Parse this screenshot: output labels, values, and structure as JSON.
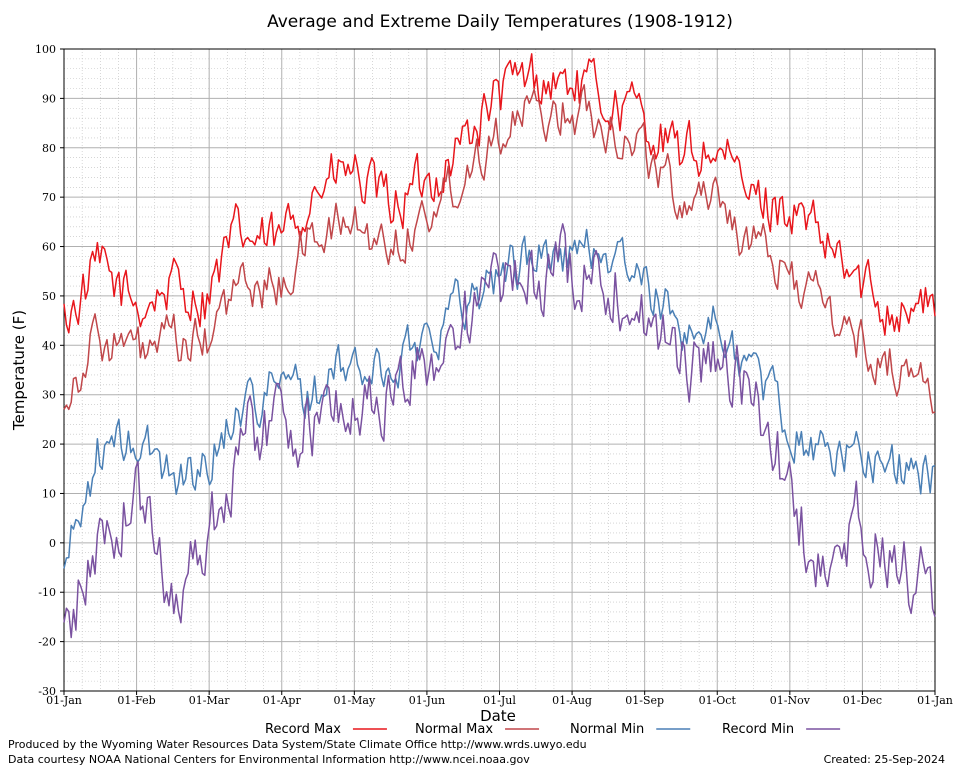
{
  "chart_data": {
    "type": "line",
    "title": "Average and Extreme Daily Temperatures (1908-1912)",
    "xlabel": "Date",
    "ylabel": "Temperature (F)",
    "ylim": [
      -30,
      100
    ],
    "yticks": [
      -30,
      -20,
      -10,
      0,
      10,
      20,
      30,
      40,
      50,
      60,
      70,
      80,
      90,
      100
    ],
    "xticks": [
      "01-Jan",
      "01-Feb",
      "01-Mar",
      "01-Apr",
      "01-May",
      "01-Jun",
      "01-Jul",
      "01-Aug",
      "01-Sep",
      "01-Oct",
      "01-Nov",
      "01-Dec",
      "01-Jan"
    ],
    "grid": true,
    "legend_position": "bottom",
    "series": [
      {
        "name": "Record Max",
        "color": "#e8161c",
        "x": [
          "01-Jan",
          "15-Jan",
          "01-Feb",
          "15-Feb",
          "01-Mar",
          "15-Mar",
          "01-Apr",
          "15-Apr",
          "01-May",
          "15-May",
          "01-Jun",
          "15-Jun",
          "01-Jul",
          "15-Jul",
          "01-Aug",
          "15-Aug",
          "01-Sep",
          "15-Sep",
          "01-Oct",
          "15-Oct",
          "01-Nov",
          "15-Nov",
          "01-Dec",
          "15-Dec",
          "31-Dec"
        ],
        "values": [
          45,
          55,
          48,
          52,
          50,
          62,
          60,
          72,
          75,
          68,
          72,
          80,
          90,
          94,
          93,
          90,
          86,
          78,
          80,
          70,
          68,
          60,
          52,
          48,
          48
        ]
      },
      {
        "name": "Normal Max",
        "color": "#c0474a",
        "x": [
          "01-Jan",
          "15-Jan",
          "01-Feb",
          "15-Feb",
          "01-Mar",
          "15-Mar",
          "01-Apr",
          "15-Apr",
          "01-May",
          "15-May",
          "01-Jun",
          "15-Jun",
          "01-Jul",
          "15-Jul",
          "01-Aug",
          "15-Aug",
          "01-Sep",
          "15-Sep",
          "01-Oct",
          "15-Oct",
          "01-Nov",
          "15-Nov",
          "01-Dec",
          "15-Dec",
          "31-Dec"
        ],
        "values": [
          30,
          42,
          38,
          40,
          40,
          52,
          52,
          62,
          65,
          60,
          66,
          74,
          84,
          86,
          88,
          86,
          80,
          70,
          72,
          60,
          55,
          48,
          40,
          36,
          32
        ]
      },
      {
        "name": "Normal Min",
        "color": "#4a7fb5",
        "x": [
          "01-Jan",
          "15-Jan",
          "01-Feb",
          "15-Feb",
          "01-Mar",
          "15-Mar",
          "01-Apr",
          "15-Apr",
          "01-May",
          "15-May",
          "01-Jun",
          "15-Jun",
          "01-Jul",
          "15-Jul",
          "01-Aug",
          "15-Aug",
          "01-Sep",
          "15-Sep",
          "01-Oct",
          "15-Oct",
          "01-Nov",
          "15-Nov",
          "01-Dec",
          "15-Dec",
          "31-Dec"
        ],
        "values": [
          -5,
          18,
          20,
          14,
          15,
          28,
          32,
          30,
          36,
          34,
          42,
          48,
          54,
          58,
          58,
          60,
          52,
          44,
          44,
          36,
          24,
          18,
          18,
          16,
          13
        ]
      },
      {
        "name": "Record Min",
        "color": "#7a52a0",
        "x": [
          "01-Jan",
          "15-Jan",
          "01-Feb",
          "15-Feb",
          "01-Mar",
          "15-Mar",
          "01-Apr",
          "15-Apr",
          "01-May",
          "15-May",
          "01-Jun",
          "15-Jun",
          "01-Jul",
          "15-Jul",
          "01-Aug",
          "15-Aug",
          "01-Sep",
          "15-Sep",
          "01-Oct",
          "15-Oct",
          "01-Nov",
          "15-Nov",
          "01-Dec",
          "15-Dec",
          "31-Dec"
        ],
        "values": [
          -20,
          0,
          10,
          -10,
          0,
          20,
          25,
          24,
          28,
          28,
          36,
          44,
          50,
          54,
          55,
          56,
          46,
          36,
          38,
          30,
          12,
          -10,
          5,
          -5,
          -10
        ]
      }
    ]
  },
  "footer": {
    "credit_1": "Produced by the Wyoming Water Resources Data System/State Climate Office http://www.wrds.uwyo.edu",
    "credit_2": "Data courtesy NOAA National Centers for Environmental Information http://www.ncei.noaa.gov",
    "created": "Created: 25-Sep-2024"
  }
}
